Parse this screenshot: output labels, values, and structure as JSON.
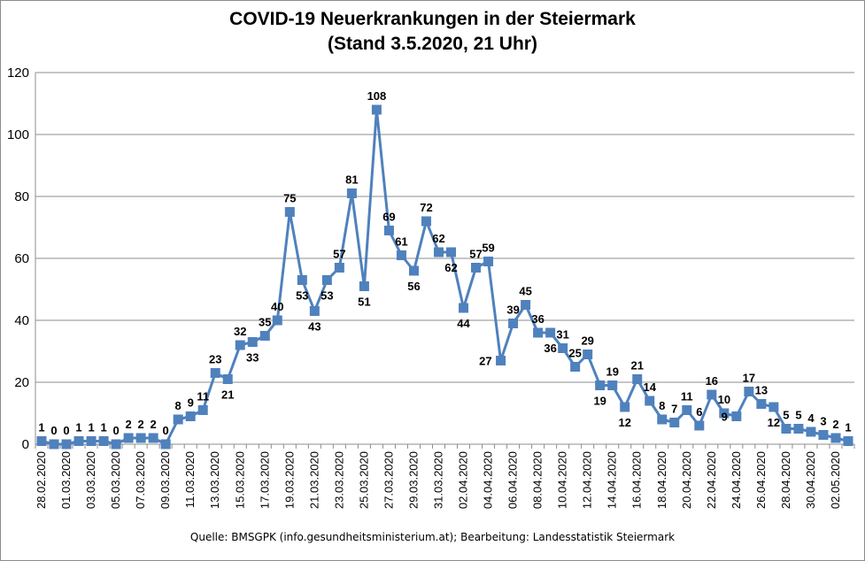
{
  "chart_data": {
    "type": "line",
    "title": "COVID-19 Neuerkrankungen in der Steiermark",
    "subtitle": "(Stand 3.5.2020, 21 Uhr)",
    "source": "Quelle: BMSGPK (info.gesundheitsministerium.at); Bearbeitung: Landesstatistik Steiermark",
    "ylim": [
      0,
      120
    ],
    "yticks": [
      0,
      20,
      40,
      60,
      80,
      100,
      120
    ],
    "grid": true,
    "series_color": "#4f81bd",
    "marker_color": "#4f81bd",
    "x": [
      "28.02.2020",
      "29.02.2020",
      "01.03.2020",
      "02.03.2020",
      "03.03.2020",
      "04.03.2020",
      "05.03.2020",
      "06.03.2020",
      "07.03.2020",
      "08.03.2020",
      "09.03.2020",
      "10.03.2020",
      "11.03.2020",
      "12.03.2020",
      "13.03.2020",
      "14.03.2020",
      "15.03.2020",
      "16.03.2020",
      "17.03.2020",
      "18.03.2020",
      "19.03.2020",
      "20.03.2020",
      "21.03.2020",
      "22.03.2020",
      "23.03.2020",
      "24.03.2020",
      "25.03.2020",
      "26.03.2020",
      "27.03.2020",
      "28.03.2020",
      "29.03.2020",
      "30.03.2020",
      "31.03.2020",
      "01.04.2020",
      "02.04.2020",
      "03.04.2020",
      "04.04.2020",
      "05.04.2020",
      "06.04.2020",
      "07.04.2020",
      "08.04.2020",
      "09.04.2020",
      "10.04.2020",
      "11.04.2020",
      "12.04.2020",
      "13.04.2020",
      "14.04.2020",
      "15.04.2020",
      "16.04.2020",
      "17.04.2020",
      "18.04.2020",
      "19.04.2020",
      "20.04.2020",
      "21.04.2020",
      "22.04.2020",
      "23.04.2020",
      "24.04.2020",
      "25.04.2020",
      "26.04.2020",
      "27.04.2020",
      "28.04.2020",
      "29.04.2020",
      "30.04.2020",
      "01.05.2020",
      "02.05.2020",
      "03.05.2020"
    ],
    "x_tick_labels": [
      "28.02.2020",
      "01.03.2020",
      "03.03.2020",
      "05.03.2020",
      "07.03.2020",
      "09.03.2020",
      "11.03.2020",
      "13.03.2020",
      "15.03.2020",
      "17.03.2020",
      "19.03.2020",
      "21.03.2020",
      "23.03.2020",
      "25.03.2020",
      "27.03.2020",
      "29.03.2020",
      "31.03.2020",
      "02.04.2020",
      "04.04.2020",
      "06.04.2020",
      "08.04.2020",
      "10.04.2020",
      "12.04.2020",
      "14.04.2020",
      "16.04.2020",
      "18.04.2020",
      "20.04.2020",
      "22.04.2020",
      "24.04.2020",
      "26.04.2020",
      "28.04.2020",
      "30.04.2020",
      "02.05.2020"
    ],
    "values": [
      1,
      0,
      0,
      1,
      1,
      1,
      0,
      2,
      2,
      2,
      0,
      8,
      9,
      11,
      23,
      21,
      32,
      33,
      35,
      40,
      75,
      53,
      43,
      53,
      57,
      81,
      51,
      108,
      69,
      61,
      56,
      72,
      62,
      62,
      44,
      57,
      59,
      27,
      39,
      45,
      36,
      36,
      31,
      25,
      29,
      19,
      19,
      12,
      21,
      14,
      8,
      7,
      11,
      6,
      16,
      10,
      9,
      17,
      13,
      12,
      5,
      5,
      4,
      3,
      2,
      1
    ],
    "label_position": [
      "a",
      "a",
      "a",
      "a",
      "a",
      "a",
      "a",
      "a",
      "a",
      "a",
      "a",
      "a",
      "a",
      "a",
      "a",
      "b",
      "a",
      "b",
      "a",
      "a",
      "a",
      "b",
      "b",
      "b",
      "a",
      "a",
      "b",
      "a",
      "a",
      "a",
      "b",
      "a",
      "a",
      "b",
      "b",
      "a",
      "a",
      "l",
      "a",
      "a",
      "a",
      "b",
      "a",
      "a",
      "a",
      "b",
      "a",
      "b",
      "a",
      "a",
      "a",
      "a",
      "a",
      "a",
      "a",
      "a",
      "l",
      "a",
      "a",
      "b",
      "a",
      "a",
      "a",
      "a",
      "a",
      "a"
    ]
  }
}
